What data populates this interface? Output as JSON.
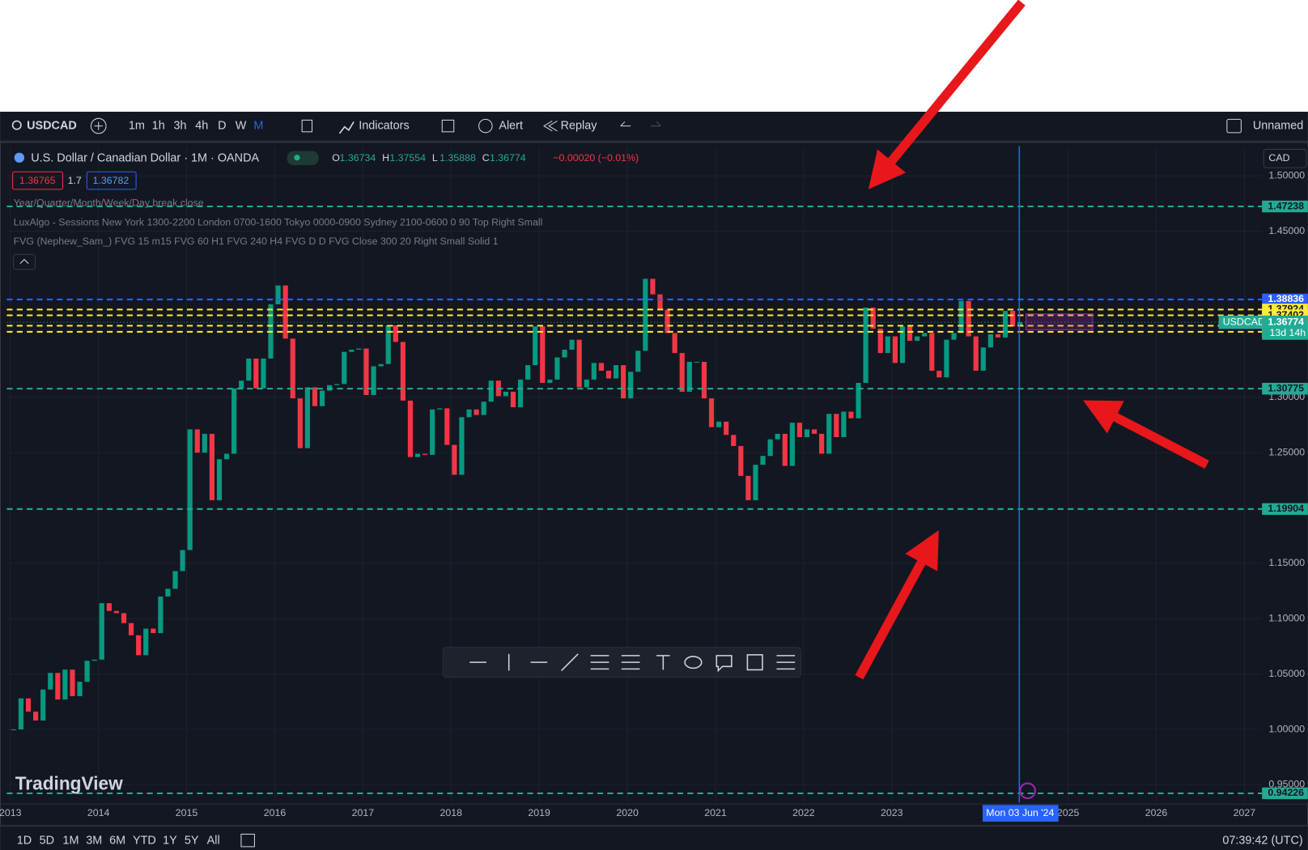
{
  "toolbar": {
    "symbol": "USDCAD",
    "intervals": [
      "1m",
      "1h",
      "3h",
      "4h",
      "D",
      "W",
      "M"
    ],
    "indicators": "Indicators",
    "alert": "Alert",
    "replay": "Replay",
    "layout": "Unnamed"
  },
  "legend": {
    "title": "U.S. Dollar / Canadian Dollar · 1M · OANDA",
    "ohlc": [
      {
        "key": "O",
        "value": "1.36734"
      },
      {
        "key": "H",
        "value": "1.37554"
      },
      {
        "key": "L",
        "value": "1.35888"
      },
      {
        "key": "C",
        "value": "1.36774"
      }
    ],
    "change": "−0.00020 (−0.01%)",
    "bid": "1.36765",
    "spread": "1.7",
    "ask": "1.36782",
    "indicators": [
      "Year/Quarter/Month/Week/Day break close",
      "LuxAlgo - Sessions New York 1300-2200 London 0700-1600 Tokyo 0000-0900 Sydney 2100-0600 0 90 Top Right Small",
      "FVG (Nephew_Sam_) FVG 15 m15 FVG 60 H1 FVG 240 H4 FVG D D FVG Close 300 20 Right Small Solid 1"
    ]
  },
  "chart_data": {
    "type": "candlestick",
    "up_color": "#089981",
    "down_color": "#f23645",
    "close": [
      1.0,
      1.028,
      1.016,
      1.008,
      1.036,
      1.051,
      1.027,
      1.054,
      1.03,
      1.043,
      1.062,
      1.063,
      1.114,
      1.107,
      1.105,
      1.096,
      1.085,
      1.067,
      1.091,
      1.087,
      1.12,
      1.127,
      1.143,
      1.162,
      1.271,
      1.25,
      1.267,
      1.207,
      1.244,
      1.249,
      1.308,
      1.315,
      1.335,
      1.308,
      1.335,
      1.384,
      1.401,
      1.353,
      1.299,
      1.254,
      1.309,
      1.292,
      1.306,
      1.311,
      1.312,
      1.341,
      1.343,
      1.344,
      1.302,
      1.328,
      1.33,
      1.365,
      1.35,
      1.297,
      1.246,
      1.249,
      1.248,
      1.289,
      1.29,
      1.257,
      1.23,
      1.282,
      1.289,
      1.284,
      1.296,
      1.315,
      1.301,
      1.305,
      1.291,
      1.316,
      1.329,
      1.364,
      1.313,
      1.316,
      1.336,
      1.343,
      1.352,
      1.309,
      1.316,
      1.331,
      1.324,
      1.317,
      1.329,
      1.299,
      1.323,
      1.342,
      1.407,
      1.393,
      1.379,
      1.358,
      1.34,
      1.305,
      1.332,
      1.332,
      1.299,
      1.273,
      1.278,
      1.266,
      1.256,
      1.229,
      1.207,
      1.239,
      1.247,
      1.262,
      1.267,
      1.238,
      1.277,
      1.264,
      1.271,
      1.267,
      1.249,
      1.285,
      1.264,
      1.287,
      1.281,
      1.313,
      1.381,
      1.362,
      1.34,
      1.355,
      1.331,
      1.364,
      1.351,
      1.355,
      1.358,
      1.324,
      1.318,
      1.352,
      1.358,
      1.387,
      1.355,
      1.324,
      1.345,
      1.357,
      1.354,
      1.378,
      1.364,
      1.36774
    ],
    "ylim": [
      0.934,
      1.527
    ],
    "xlim": [
      2012.96,
      2027.2
    ],
    "yticks": [
      {
        "value": 1.5,
        "label": "1.50000"
      },
      {
        "value": 1.45,
        "label": "1.45000"
      },
      {
        "value": 1.3,
        "label": "1.30000"
      },
      {
        "value": 1.25,
        "label": "1.25000"
      },
      {
        "value": 1.15,
        "label": "1.15000"
      },
      {
        "value": 1.1,
        "label": "1.10000"
      },
      {
        "value": 1.05,
        "label": "1.05000"
      },
      {
        "value": 1.0,
        "label": "1.00000"
      },
      {
        "value": 0.95,
        "label": "0.95000"
      }
    ],
    "xticks": [
      2013,
      2014,
      2015,
      2016,
      2017,
      2018,
      2019,
      2020,
      2021,
      2022,
      2023,
      2025,
      2026,
      2027
    ],
    "levels": [
      {
        "value": 1.47238,
        "color": "#22ab94"
      },
      {
        "value": 1.38836,
        "color": "#2962ff"
      },
      {
        "value": 1.37924,
        "color": "#ffeb3b"
      },
      {
        "value": 1.37402,
        "color": "#ffeb3b"
      },
      {
        "value": 1.36463,
        "color": "#ffeb3b"
      },
      {
        "value": 1.35912,
        "color": "#ffeb3b"
      },
      {
        "value": 1.30775,
        "color": "#22ab94"
      },
      {
        "value": 1.19904,
        "color": "#22ab94"
      },
      {
        "value": 0.94226,
        "color": "#22ab94"
      }
    ],
    "last": {
      "value": 1.36774,
      "symbol": "USDCAD",
      "countdown": "13d 14h"
    },
    "currency": "CAD",
    "crosshair_date": "Mon 03 Jun '24",
    "watermark": "TradingView"
  },
  "bottom": {
    "ranges": [
      "1D",
      "5D",
      "1M",
      "3M",
      "6M",
      "YTD",
      "1Y",
      "5Y",
      "All"
    ],
    "clock": "07:39:42 (UTC)"
  }
}
